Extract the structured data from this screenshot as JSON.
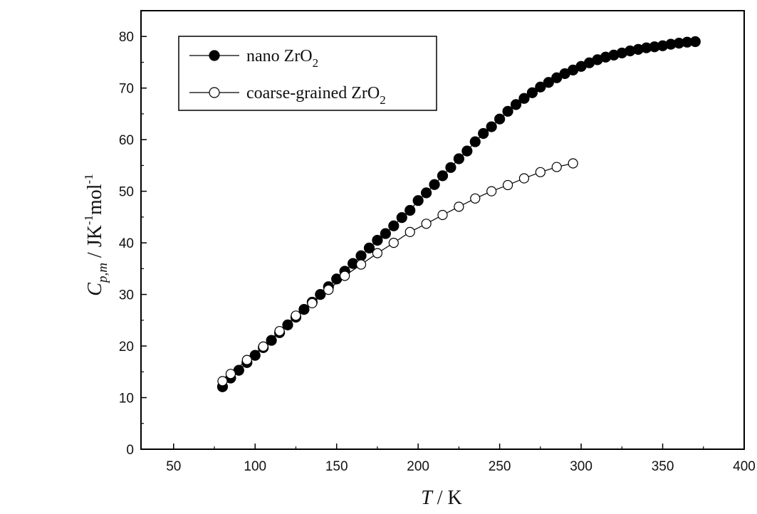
{
  "chart_data": {
    "type": "scatter",
    "xlabel": {
      "symbol": "T",
      "unit": " / K"
    },
    "ylabel": {
      "symbol": "C",
      "subscript": "p,m",
      "unit_prefix": " / JK",
      "sup1": "-1",
      "unit_mid": "mol",
      "sup2": "-1"
    },
    "xlim": [
      30,
      400
    ],
    "ylim": [
      0,
      85
    ],
    "x_ticks": [
      50,
      100,
      150,
      200,
      250,
      300,
      350,
      400
    ],
    "y_ticks": [
      0,
      10,
      20,
      30,
      40,
      50,
      60,
      70,
      80
    ],
    "grid": false,
    "legend_position": "top-left",
    "series": [
      {
        "name": "nano ZrO",
        "name_subscript": "2",
        "marker": "filled-circle",
        "color": "#000000",
        "x": [
          80,
          85,
          90,
          95,
          100,
          105,
          110,
          115,
          120,
          125,
          130,
          135,
          140,
          145,
          150,
          155,
          160,
          165,
          170,
          175,
          180,
          185,
          190,
          195,
          200,
          205,
          210,
          215,
          220,
          225,
          230,
          235,
          240,
          245,
          250,
          255,
          260,
          265,
          270,
          275,
          280,
          285,
          290,
          295,
          300,
          305,
          310,
          315,
          320,
          325,
          330,
          335,
          340,
          345,
          350,
          355,
          360,
          365,
          370
        ],
        "y": [
          12.1,
          13.8,
          15.3,
          16.8,
          18.2,
          19.7,
          21.1,
          22.6,
          24.1,
          25.6,
          27.1,
          28.5,
          30.0,
          31.5,
          33.0,
          34.5,
          36.0,
          37.5,
          39.0,
          40.5,
          41.8,
          43.3,
          44.9,
          46.3,
          48.2,
          49.7,
          51.3,
          53.0,
          54.6,
          56.3,
          57.8,
          59.6,
          61.2,
          62.5,
          64.0,
          65.5,
          66.8,
          68.0,
          69.1,
          70.2,
          71.1,
          72.0,
          72.8,
          73.5,
          74.2,
          74.9,
          75.5,
          76.0,
          76.4,
          76.8,
          77.2,
          77.5,
          77.8,
          78.0,
          78.2,
          78.5,
          78.7,
          78.9,
          79.0
        ]
      },
      {
        "name": "coarse-grained ZrO",
        "name_subscript": "2",
        "marker": "open-circle",
        "color": "#000000",
        "x": [
          80,
          85,
          95,
          105,
          115,
          125,
          135,
          145,
          155,
          165,
          175,
          185,
          195,
          205,
          215,
          225,
          235,
          245,
          255,
          265,
          275,
          285,
          295
        ],
        "y": [
          13.2,
          14.6,
          17.3,
          19.9,
          22.9,
          25.9,
          28.3,
          30.9,
          33.6,
          35.8,
          38.0,
          40.0,
          42.1,
          43.7,
          45.4,
          47.0,
          48.6,
          50.0,
          51.2,
          52.5,
          53.7,
          54.7,
          55.4
        ]
      }
    ]
  }
}
